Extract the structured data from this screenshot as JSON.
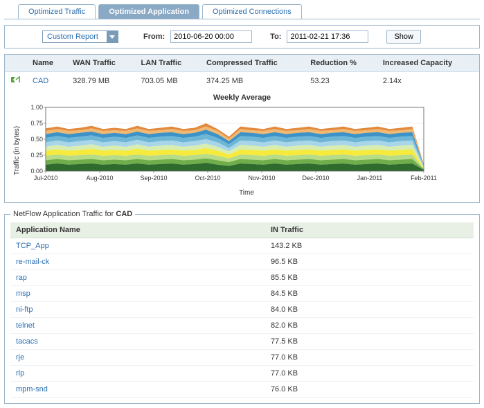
{
  "tabs": {
    "items": [
      {
        "label": "Optimized Traffic",
        "active": false
      },
      {
        "label": "Optimized Application",
        "active": true
      },
      {
        "label": "Optimized Connections",
        "active": false
      }
    ]
  },
  "filter": {
    "report_selector": "Custom Report",
    "from_label": "From:",
    "from_value": "2010-06-20 00:00",
    "to_label": "To:",
    "to_value": "2011-02-21 17:36",
    "show_label": "Show"
  },
  "summary": {
    "headers": {
      "name": "Name",
      "wan": "WAN Traffic",
      "lan": "LAN Traffic",
      "compressed": "Compressed Traffic",
      "reduction": "Reduction %",
      "capacity": "Increased Capacity"
    },
    "row": {
      "name": "CAD",
      "wan": "328.79 MB",
      "lan": "703.05 MB",
      "compressed": "374.25 MB",
      "reduction": "53.23",
      "capacity": "2.14x"
    }
  },
  "chart": {
    "title": "Weekly Average",
    "ylabel": "Traffic (in bytes)",
    "xlabel": "Time",
    "ylim": [
      0,
      1.0
    ],
    "yticks": [
      "0.00",
      "0.25",
      "0.50",
      "0.75",
      "1.00"
    ],
    "xticks": [
      "Jul-2010",
      "Aug-2010",
      "Sep-2010",
      "Oct-2010",
      "Nov-2010",
      "Dec-2010",
      "Jan-2011",
      "Feb-2011"
    ],
    "background_color": "#ffffff",
    "grid_color": "#e0e0e0",
    "axis_color": "#666666",
    "text_color": "#333333",
    "series_colors": [
      "#2f6b2f",
      "#6fae4a",
      "#b8db87",
      "#f6ea3c",
      "#d8edb0",
      "#a8d6e8",
      "#6eb6d6",
      "#3d92c7",
      "#f0b870",
      "#e28a3e"
    ],
    "x": [
      0,
      1,
      2,
      3,
      4,
      5,
      6,
      7,
      8,
      9,
      10,
      11,
      12,
      13,
      14,
      15,
      16,
      17,
      18,
      19,
      20,
      21,
      22,
      23,
      24,
      25,
      26,
      27,
      28,
      29,
      30,
      31,
      32,
      33
    ],
    "series": [
      [
        0.1,
        0.12,
        0.1,
        0.11,
        0.12,
        0.1,
        0.11,
        0.1,
        0.12,
        0.1,
        0.11,
        0.12,
        0.1,
        0.11,
        0.13,
        0.1,
        0.08,
        0.12,
        0.11,
        0.1,
        0.12,
        0.1,
        0.11,
        0.12,
        0.1,
        0.11,
        0.12,
        0.1,
        0.11,
        0.12,
        0.1,
        0.11,
        0.12,
        0.02
      ],
      [
        0.17,
        0.19,
        0.17,
        0.18,
        0.19,
        0.17,
        0.18,
        0.17,
        0.19,
        0.17,
        0.18,
        0.19,
        0.17,
        0.18,
        0.2,
        0.17,
        0.14,
        0.19,
        0.18,
        0.17,
        0.19,
        0.17,
        0.18,
        0.19,
        0.17,
        0.18,
        0.19,
        0.17,
        0.18,
        0.19,
        0.17,
        0.18,
        0.19,
        0.03
      ],
      [
        0.24,
        0.26,
        0.24,
        0.25,
        0.26,
        0.24,
        0.25,
        0.24,
        0.26,
        0.24,
        0.25,
        0.26,
        0.24,
        0.25,
        0.27,
        0.24,
        0.2,
        0.26,
        0.25,
        0.24,
        0.26,
        0.24,
        0.25,
        0.26,
        0.24,
        0.25,
        0.26,
        0.24,
        0.25,
        0.26,
        0.24,
        0.25,
        0.26,
        0.04
      ],
      [
        0.32,
        0.34,
        0.32,
        0.33,
        0.35,
        0.32,
        0.33,
        0.32,
        0.35,
        0.32,
        0.33,
        0.34,
        0.32,
        0.33,
        0.36,
        0.32,
        0.26,
        0.34,
        0.33,
        0.32,
        0.34,
        0.32,
        0.33,
        0.34,
        0.32,
        0.33,
        0.34,
        0.32,
        0.33,
        0.34,
        0.32,
        0.33,
        0.34,
        0.05
      ],
      [
        0.38,
        0.41,
        0.38,
        0.4,
        0.42,
        0.38,
        0.4,
        0.38,
        0.42,
        0.38,
        0.4,
        0.41,
        0.38,
        0.4,
        0.43,
        0.38,
        0.31,
        0.41,
        0.4,
        0.38,
        0.41,
        0.38,
        0.4,
        0.41,
        0.38,
        0.4,
        0.41,
        0.38,
        0.4,
        0.41,
        0.38,
        0.4,
        0.41,
        0.06
      ],
      [
        0.45,
        0.48,
        0.45,
        0.47,
        0.49,
        0.45,
        0.47,
        0.45,
        0.49,
        0.45,
        0.47,
        0.48,
        0.45,
        0.47,
        0.5,
        0.45,
        0.36,
        0.48,
        0.47,
        0.45,
        0.48,
        0.45,
        0.47,
        0.48,
        0.45,
        0.47,
        0.48,
        0.45,
        0.47,
        0.48,
        0.45,
        0.47,
        0.48,
        0.07
      ],
      [
        0.52,
        0.55,
        0.52,
        0.54,
        0.56,
        0.52,
        0.54,
        0.52,
        0.56,
        0.52,
        0.54,
        0.55,
        0.52,
        0.54,
        0.58,
        0.52,
        0.42,
        0.55,
        0.54,
        0.52,
        0.55,
        0.52,
        0.54,
        0.55,
        0.52,
        0.54,
        0.55,
        0.52,
        0.54,
        0.55,
        0.52,
        0.54,
        0.55,
        0.08
      ],
      [
        0.58,
        0.61,
        0.58,
        0.6,
        0.62,
        0.58,
        0.6,
        0.58,
        0.62,
        0.58,
        0.6,
        0.61,
        0.58,
        0.6,
        0.65,
        0.58,
        0.47,
        0.61,
        0.6,
        0.58,
        0.61,
        0.58,
        0.6,
        0.61,
        0.58,
        0.6,
        0.61,
        0.58,
        0.6,
        0.61,
        0.58,
        0.6,
        0.61,
        0.09
      ],
      [
        0.63,
        0.66,
        0.63,
        0.64,
        0.67,
        0.63,
        0.64,
        0.63,
        0.67,
        0.63,
        0.64,
        0.66,
        0.63,
        0.64,
        0.7,
        0.63,
        0.51,
        0.66,
        0.64,
        0.63,
        0.66,
        0.63,
        0.64,
        0.66,
        0.63,
        0.64,
        0.66,
        0.63,
        0.64,
        0.66,
        0.63,
        0.64,
        0.66,
        0.1
      ],
      [
        0.67,
        0.7,
        0.66,
        0.68,
        0.71,
        0.66,
        0.68,
        0.66,
        0.71,
        0.66,
        0.68,
        0.7,
        0.66,
        0.68,
        0.75,
        0.66,
        0.54,
        0.7,
        0.68,
        0.66,
        0.7,
        0.66,
        0.68,
        0.7,
        0.66,
        0.68,
        0.7,
        0.66,
        0.68,
        0.7,
        0.66,
        0.68,
        0.7,
        0.11
      ]
    ]
  },
  "netflow": {
    "legend_prefix": "NetFlow Application Traffic for ",
    "legend_name": "CAD",
    "headers": {
      "app": "Application Name",
      "in": "IN Traffic"
    },
    "rows": [
      {
        "app": "TCP_App",
        "in": "143.2 KB"
      },
      {
        "app": "re-mail-ck",
        "in": "96.5 KB"
      },
      {
        "app": "rap",
        "in": "85.5 KB"
      },
      {
        "app": "msp",
        "in": "84.5 KB"
      },
      {
        "app": "ni-ftp",
        "in": "84.0 KB"
      },
      {
        "app": "telnet",
        "in": "82.0 KB"
      },
      {
        "app": "tacacs",
        "in": "77.5 KB"
      },
      {
        "app": "rje",
        "in": "77.0 KB"
      },
      {
        "app": "rlp",
        "in": "77.0 KB"
      },
      {
        "app": "mpm-snd",
        "in": "76.0 KB"
      }
    ]
  }
}
